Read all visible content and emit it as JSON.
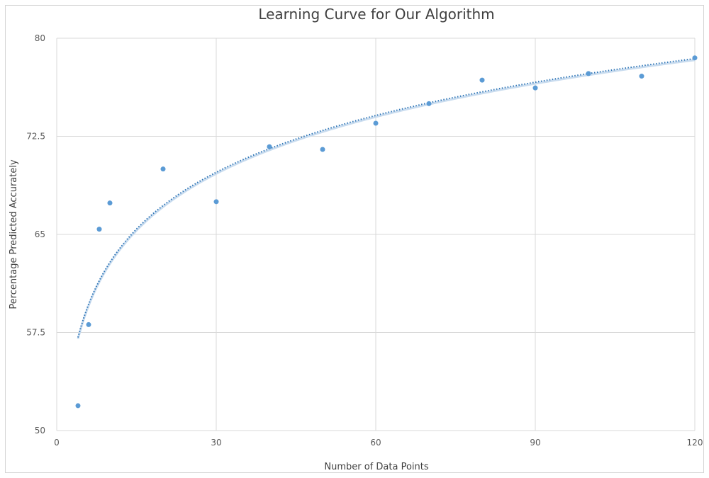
{
  "chart_data": {
    "type": "scatter",
    "title": "Learning Curve for Our Algorithm",
    "xlabel": "Number of Data Points",
    "ylabel": "Percentage Predicted Accurately",
    "xlim": [
      0,
      120
    ],
    "ylim": [
      50,
      80
    ],
    "xticks": [
      0,
      30,
      60,
      90,
      120
    ],
    "yticks": [
      50,
      57.5,
      65,
      72.5,
      80
    ],
    "ytick_labels": [
      "50",
      "57.5",
      "65",
      "72.5",
      "80"
    ],
    "xtick_labels": [
      "0",
      "30",
      "60",
      "90",
      "120"
    ],
    "grid": true,
    "legend": "none",
    "series": [
      {
        "x": [
          4,
          6,
          8,
          10,
          20,
          30,
          40,
          50,
          60,
          70,
          80,
          90,
          100,
          110,
          120
        ],
        "y": [
          51.9,
          58.1,
          65.4,
          67.4,
          70.0,
          67.5,
          71.7,
          71.5,
          73.5,
          75.0,
          76.8,
          76.2,
          77.3,
          77.1,
          78.5
        ]
      }
    ],
    "trendline": {
      "type": "logarithmic",
      "x_start": 4,
      "x_end": 120
    },
    "colors": {
      "points": "#5b9bd5",
      "trendline": "#2e75b6",
      "grid": "#d9d9d9"
    }
  }
}
